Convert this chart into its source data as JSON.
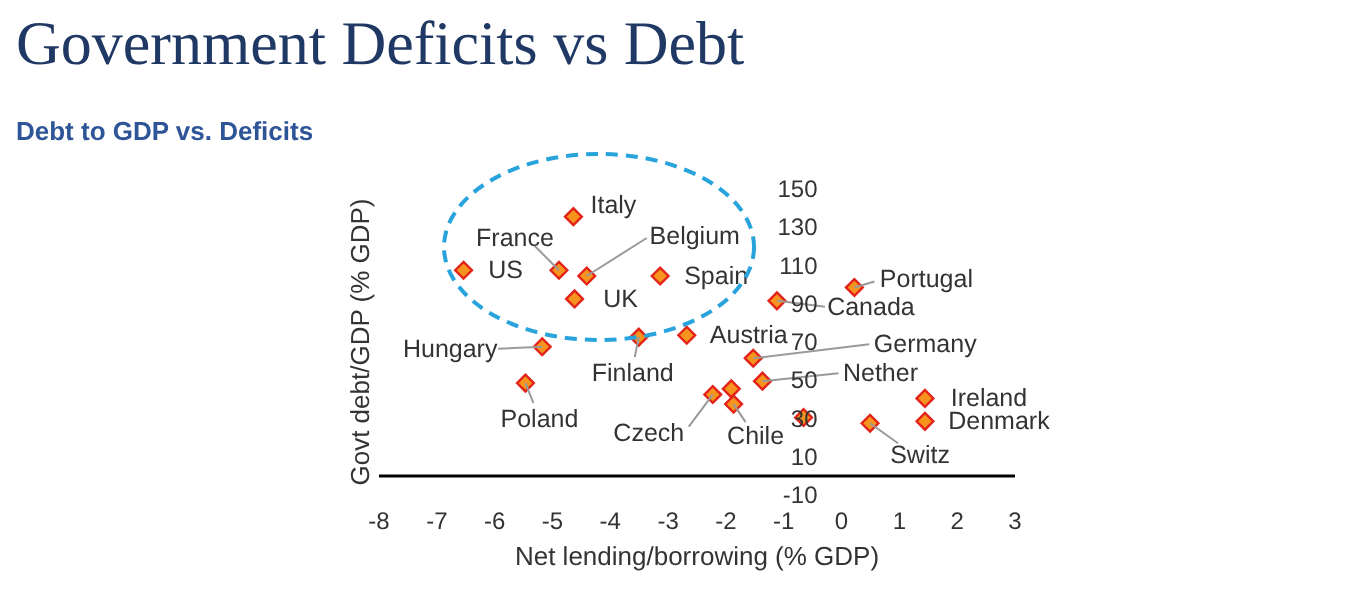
{
  "chart_data": {
    "type": "scatter",
    "title": "Government Deficits vs Debt",
    "subtitle": "Debt to GDP vs. Deficits",
    "xlabel": "Net lending/borrowing (% GDP)",
    "ylabel": "Govt debt/GDP (% GDP)",
    "x": [
      -4.62,
      -4.87,
      -6.52,
      -4.39,
      -4.6,
      -3.12,
      -5.16,
      -5.45,
      -3.49,
      -2.66,
      -2.21,
      -1.85,
      -1.1,
      0.24,
      -1.51,
      -1.35,
      1.46,
      1.46,
      0.51,
      -1.89,
      -0.64
    ],
    "series": [
      {
        "color": "#f7941d",
        "values": [
          135,
          107,
          107,
          104,
          92,
          104,
          67,
          48,
          72,
          73,
          42,
          37,
          91,
          98,
          61,
          49,
          40,
          28,
          27,
          45,
          30
        ]
      }
    ],
    "marker": "diamond",
    "grid": false,
    "xlim": [
      -8,
      3
    ],
    "xticks": [
      -8,
      -7,
      -6,
      -5,
      -4,
      -3,
      -2,
      -1,
      0,
      1,
      2,
      3
    ],
    "ylim": [
      -10,
      150
    ],
    "yticks": [
      -10,
      10,
      30,
      50,
      70,
      90,
      110,
      130,
      150
    ],
    "annotations": [
      {
        "text": "Italy",
        "x": -4.62,
        "y": 135
      },
      {
        "text": "France",
        "x": -4.87,
        "y": 107
      },
      {
        "text": "US",
        "x": -6.52,
        "y": 107
      },
      {
        "text": "Belgium",
        "x": -4.39,
        "y": 104
      },
      {
        "text": "UK",
        "x": -4.6,
        "y": 92
      },
      {
        "text": "Spain",
        "x": -3.12,
        "y": 104
      },
      {
        "text": "Hungary",
        "x": -5.16,
        "y": 67
      },
      {
        "text": "Poland",
        "x": -5.45,
        "y": 48
      },
      {
        "text": "Finland",
        "x": -3.49,
        "y": 72
      },
      {
        "text": "Austria",
        "x": -2.66,
        "y": 73
      },
      {
        "text": "Czech",
        "x": -2.21,
        "y": 42
      },
      {
        "text": "Chile",
        "x": -1.85,
        "y": 37
      },
      {
        "text": "Canada",
        "x": -1.1,
        "y": 91
      },
      {
        "text": "Portugal",
        "x": 0.24,
        "y": 98
      },
      {
        "text": "Germany",
        "x": -1.51,
        "y": 61
      },
      {
        "text": "Nether",
        "x": -1.35,
        "y": 49
      },
      {
        "text": "Ireland",
        "x": 1.46,
        "y": 40
      },
      {
        "text": "Denmark",
        "x": 1.46,
        "y": 28
      },
      {
        "text": "Switz",
        "x": 0.51,
        "y": 27
      }
    ]
  }
}
